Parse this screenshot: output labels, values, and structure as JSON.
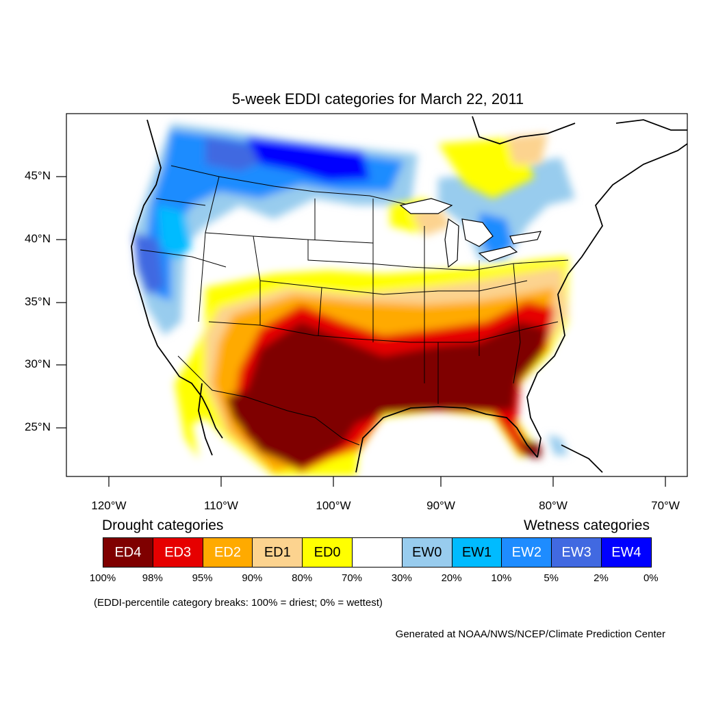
{
  "title": "5-week EDDI categories for March 22, 2011",
  "lat_labels": [
    "45°N",
    "40°N",
    "35°N",
    "30°N",
    "25°N"
  ],
  "lon_labels": [
    "120°W",
    "110°W",
    "100°W",
    "90°W",
    "80°W",
    "70°W"
  ],
  "legend": {
    "drought_heading": "Drought categories",
    "wetness_heading": "Wetness categories",
    "categories": [
      {
        "label": "ED4",
        "color": "#7f0000",
        "text_color": "#ffffff"
      },
      {
        "label": "ED3",
        "color": "#e60000",
        "text_color": "#ffffff"
      },
      {
        "label": "ED2",
        "color": "#ffaa00",
        "text_color": "#ffffff"
      },
      {
        "label": "ED1",
        "color": "#fcd38f",
        "text_color": "#000000"
      },
      {
        "label": "ED0",
        "color": "#ffff00",
        "text_color": "#000000"
      },
      {
        "label": "",
        "color": "#ffffff",
        "text_color": "#000000"
      },
      {
        "label": "EW0",
        "color": "#98ccee",
        "text_color": "#000000"
      },
      {
        "label": "EW1",
        "color": "#00bbff",
        "text_color": "#000000"
      },
      {
        "label": "EW2",
        "color": "#1e8cff",
        "text_color": "#ffffff"
      },
      {
        "label": "EW3",
        "color": "#4169e1",
        "text_color": "#ffffff"
      },
      {
        "label": "EW4",
        "color": "#0000ff",
        "text_color": "#ffffff"
      }
    ],
    "percentiles": [
      "100%",
      "98%",
      "95%",
      "90%",
      "80%",
      "70%",
      "30%",
      "20%",
      "10%",
      "5%",
      "2%",
      "0%"
    ]
  },
  "note": "(EDDI-percentile category breaks: 100% = driest; 0% = wettest)",
  "credit": "Generated at NOAA/NWS/NCEP/Climate Prediction Center"
}
